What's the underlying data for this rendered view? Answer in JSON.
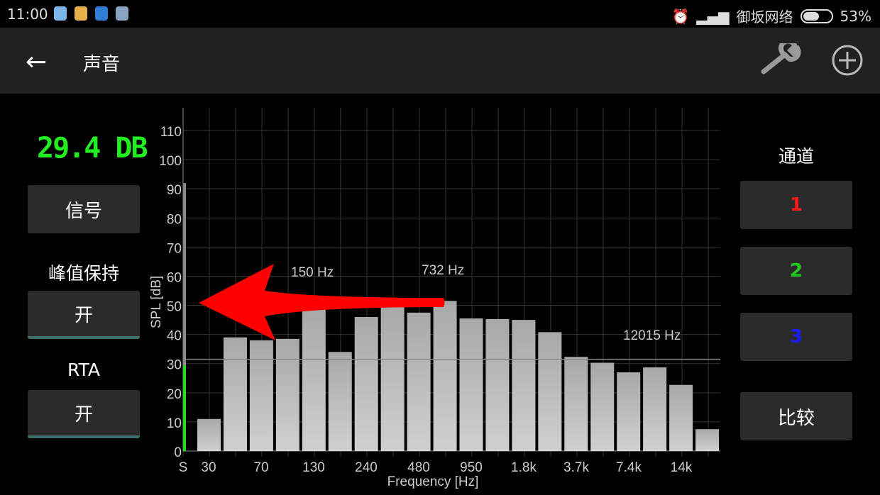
{
  "status_bar": {
    "time": "11:00",
    "carrier": "御坂网络",
    "battery": "53%",
    "battery_level": 0.53,
    "icons": [
      "chat-icon",
      "store-icon",
      "zhihu-icon",
      "notepad-icon",
      "alarm-icon",
      "signal-icon"
    ]
  },
  "app_bar": {
    "title": "声音",
    "actions": [
      "wrench-icon",
      "add-circle-icon"
    ]
  },
  "left_panel": {
    "readout": "29.4 DB",
    "signal_button": "信号",
    "peak_hold_label": "峰值保持",
    "peak_hold_button": "开",
    "rta_label": "RTA",
    "rta_button": "开"
  },
  "right_panel": {
    "channel_label": "通道",
    "channels": [
      {
        "label": "1",
        "color": "#ff1a1a"
      },
      {
        "label": "2",
        "color": "#1ecb1e"
      },
      {
        "label": "3",
        "color": "#1a1aff"
      }
    ],
    "compare_button": "比较"
  },
  "chart_data": {
    "type": "bar",
    "xlabel": "Frequency [Hz]",
    "ylabel": "SPL [dB]",
    "ylim": [
      0,
      110
    ],
    "yticks": [
      "0",
      "10",
      "20",
      "30",
      "40",
      "50",
      "60",
      "70",
      "80",
      "90",
      "100",
      "110"
    ],
    "xtick_labels": [
      "S",
      "30",
      "70",
      "130",
      "240",
      "480",
      "950",
      "1.8k",
      "3.7k",
      "7.4k",
      "14k"
    ],
    "values": [
      11,
      39,
      38,
      38.5,
      48.5,
      34,
      46,
      49.5,
      47.5,
      51.5,
      45.5,
      45.3,
      45,
      40.8,
      32.3,
      30.3,
      27,
      28.7,
      22.7,
      7.5
    ],
    "annotations": [
      "150 Hz",
      "732 Hz",
      "12015 Hz"
    ],
    "level_meter": {
      "current": 29.4,
      "peak": 92
    },
    "reference_line": 31.5,
    "grid": true,
    "bar_color": "#bdbdbd"
  }
}
